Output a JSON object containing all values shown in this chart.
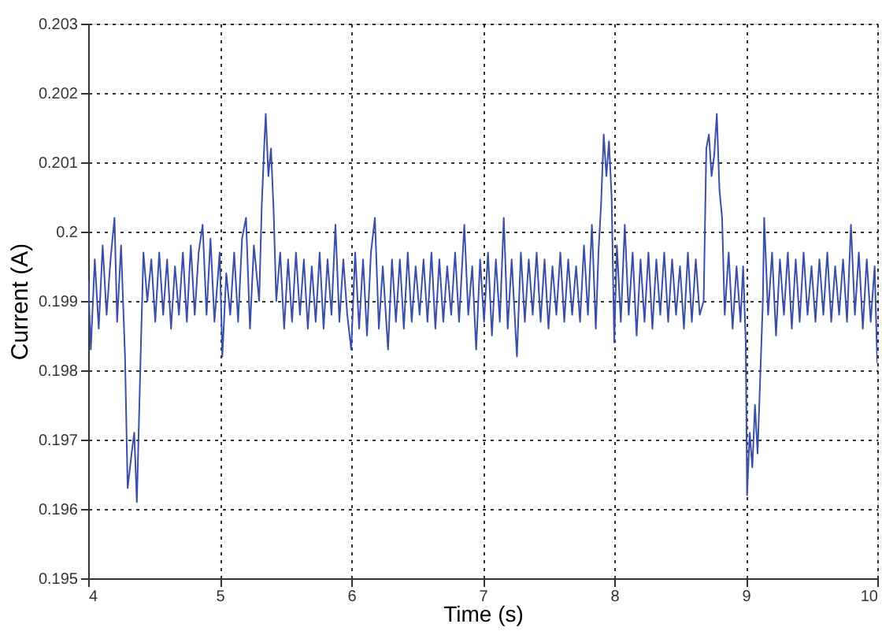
{
  "chart_data": {
    "type": "line",
    "xlabel": "Time (s)",
    "ylabel": "Current (A)",
    "xlim": [
      4,
      10
    ],
    "ylim": [
      0.195,
      0.203
    ],
    "xticks": [
      4,
      5,
      6,
      7,
      8,
      9,
      10
    ],
    "yticks": [
      0.195,
      0.196,
      0.197,
      0.198,
      0.199,
      0.2,
      0.201,
      0.202,
      0.203
    ],
    "grid": true,
    "marker": "none",
    "line_style": "solid",
    "series": [
      {
        "color": "#3a4fa8",
        "x": [
          4.0,
          4.02,
          4.05,
          4.08,
          4.11,
          4.14,
          4.17,
          4.2,
          4.22,
          4.25,
          4.28,
          4.3,
          4.33,
          4.35,
          4.37,
          4.4,
          4.42,
          4.45,
          4.48,
          4.51,
          4.54,
          4.57,
          4.6,
          4.63,
          4.66,
          4.69,
          4.72,
          4.75,
          4.78,
          4.81,
          4.84,
          4.87,
          4.9,
          4.93,
          4.96,
          5.0,
          5.02,
          5.05,
          5.08,
          5.11,
          5.14,
          5.17,
          5.2,
          5.23,
          5.26,
          5.3,
          5.32,
          5.34,
          5.35,
          5.37,
          5.39,
          5.41,
          5.43,
          5.46,
          5.49,
          5.52,
          5.55,
          5.58,
          5.61,
          5.64,
          5.67,
          5.7,
          5.73,
          5.76,
          5.79,
          5.82,
          5.85,
          5.88,
          5.91,
          5.94,
          5.97,
          6.0,
          6.03,
          6.06,
          6.09,
          6.12,
          6.15,
          6.18,
          6.21,
          6.24,
          6.28,
          6.31,
          6.34,
          6.37,
          6.4,
          6.43,
          6.46,
          6.49,
          6.52,
          6.55,
          6.58,
          6.61,
          6.64,
          6.67,
          6.7,
          6.73,
          6.76,
          6.79,
          6.82,
          6.86,
          6.89,
          6.92,
          6.95,
          6.98,
          7.01,
          7.04,
          7.07,
          7.1,
          7.13,
          7.16,
          7.19,
          7.22,
          7.26,
          7.29,
          7.32,
          7.35,
          7.38,
          7.41,
          7.44,
          7.47,
          7.5,
          7.53,
          7.56,
          7.59,
          7.62,
          7.65,
          7.68,
          7.71,
          7.74,
          7.77,
          7.8,
          7.83,
          7.86,
          7.88,
          7.9,
          7.92,
          7.94,
          7.96,
          7.98,
          8.0,
          8.02,
          8.05,
          8.08,
          8.11,
          8.14,
          8.17,
          8.2,
          8.23,
          8.26,
          8.29,
          8.32,
          8.35,
          8.38,
          8.41,
          8.44,
          8.47,
          8.5,
          8.53,
          8.56,
          8.59,
          8.62,
          8.65,
          8.68,
          8.7,
          8.72,
          8.74,
          8.76,
          8.78,
          8.8,
          8.82,
          8.84,
          8.87,
          8.9,
          8.93,
          8.96,
          8.98,
          9.0,
          9.01,
          9.03,
          9.05,
          9.07,
          9.09,
          9.11,
          9.13,
          9.14,
          9.17,
          9.2,
          9.23,
          9.26,
          9.29,
          9.32,
          9.35,
          9.38,
          9.41,
          9.44,
          9.47,
          9.5,
          9.53,
          9.56,
          9.59,
          9.62,
          9.65,
          9.68,
          9.71,
          9.74,
          9.77,
          9.8,
          9.83,
          9.86,
          9.89,
          9.92,
          9.95,
          9.98,
          10.0
        ],
        "values": [
          0.1993,
          0.1983,
          0.1996,
          0.1986,
          0.1998,
          0.1988,
          0.1996,
          0.2002,
          0.1987,
          0.1998,
          0.1982,
          0.1963,
          0.1968,
          0.1971,
          0.1961,
          0.1983,
          0.1997,
          0.199,
          0.1996,
          0.1987,
          0.1997,
          0.1988,
          0.1996,
          0.1986,
          0.1995,
          0.1988,
          0.1997,
          0.1987,
          0.1998,
          0.1988,
          0.1997,
          0.2001,
          0.1988,
          0.1999,
          0.1987,
          0.1997,
          0.1982,
          0.1994,
          0.1988,
          0.1997,
          0.1987,
          0.1999,
          0.2002,
          0.1986,
          0.1998,
          0.199,
          0.2004,
          0.2013,
          0.2017,
          0.2008,
          0.2012,
          0.2003,
          0.199,
          0.1997,
          0.1986,
          0.1996,
          0.1987,
          0.1997,
          0.1988,
          0.1996,
          0.1986,
          0.1995,
          0.1987,
          0.1997,
          0.1986,
          0.1996,
          0.1988,
          0.2001,
          0.1987,
          0.1996,
          0.1988,
          0.1983,
          0.1997,
          0.1986,
          0.1996,
          0.1985,
          0.1997,
          0.2002,
          0.1986,
          0.1995,
          0.1983,
          0.1996,
          0.1987,
          0.1996,
          0.1986,
          0.1997,
          0.1987,
          0.1995,
          0.1988,
          0.1996,
          0.1987,
          0.1997,
          0.1986,
          0.1996,
          0.1987,
          0.1995,
          0.1988,
          0.1997,
          0.1987,
          0.2001,
          0.1988,
          0.1995,
          0.1983,
          0.1996,
          0.1987,
          0.1997,
          0.1985,
          0.1996,
          0.1987,
          0.2002,
          0.1986,
          0.1996,
          0.1982,
          0.1997,
          0.1987,
          0.1996,
          0.1988,
          0.1997,
          0.1987,
          0.1996,
          0.1986,
          0.1995,
          0.1988,
          0.1997,
          0.1987,
          0.1996,
          0.1988,
          0.1995,
          0.1987,
          0.1998,
          0.1988,
          0.2001,
          0.1986,
          0.1997,
          0.2004,
          0.2014,
          0.2008,
          0.2013,
          0.2005,
          0.1984,
          0.1998,
          0.1987,
          0.2001,
          0.1988,
          0.1997,
          0.1985,
          0.1996,
          0.1987,
          0.1997,
          0.1986,
          0.1996,
          0.1988,
          0.1997,
          0.1987,
          0.1996,
          0.1988,
          0.1995,
          0.1986,
          0.1997,
          0.1987,
          0.1996,
          0.1988,
          0.199,
          0.2012,
          0.2014,
          0.2008,
          0.2011,
          0.2017,
          0.2006,
          0.2002,
          0.1988,
          0.1997,
          0.1986,
          0.1995,
          0.1987,
          0.1995,
          0.1984,
          0.1962,
          0.1971,
          0.1966,
          0.1975,
          0.1968,
          0.1979,
          0.199,
          0.2002,
          0.1988,
          0.1997,
          0.1985,
          0.1996,
          0.1988,
          0.1997,
          0.1986,
          0.1996,
          0.1987,
          0.1997,
          0.1988,
          0.1995,
          0.1987,
          0.1996,
          0.1988,
          0.1997,
          0.1987,
          0.1995,
          0.1988,
          0.1996,
          0.1987,
          0.2001,
          0.1988,
          0.1997,
          0.1986,
          0.1996,
          0.1987,
          0.1995,
          0.1981
        ]
      }
    ]
  }
}
